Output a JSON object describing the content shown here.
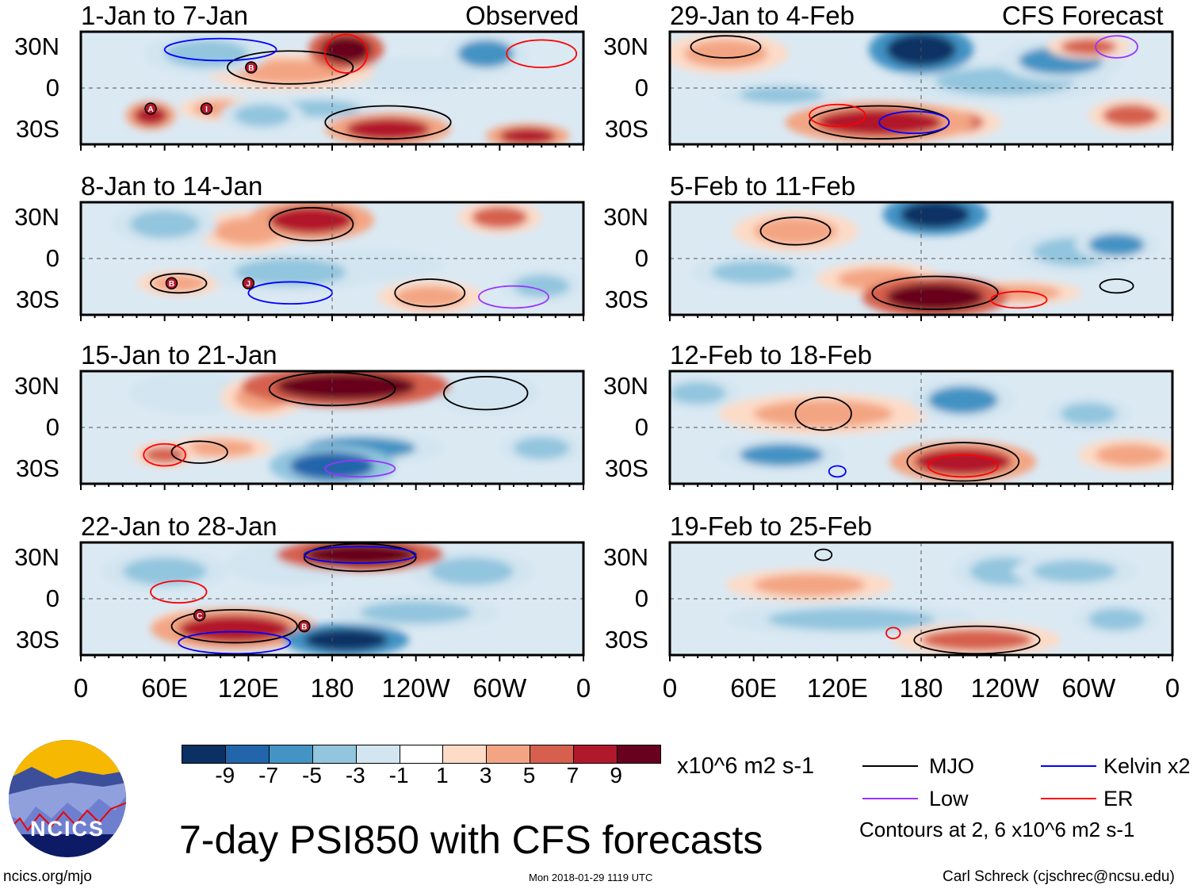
{
  "header": {
    "left_label": "Observed",
    "right_label": "CFS Forecast"
  },
  "panels": [
    {
      "title": "1-Jan to 7-Jan",
      "column": "observed"
    },
    {
      "title": "8-Jan to 14-Jan",
      "column": "observed"
    },
    {
      "title": "15-Jan to 21-Jan",
      "column": "observed"
    },
    {
      "title": "22-Jan to 28-Jan",
      "column": "observed"
    },
    {
      "title": "29-Jan to 4-Feb",
      "column": "forecast"
    },
    {
      "title": "5-Feb to 11-Feb",
      "column": "forecast"
    },
    {
      "title": "12-Feb to 18-Feb",
      "column": "forecast"
    },
    {
      "title": "19-Feb to 25-Feb",
      "column": "forecast"
    }
  ],
  "axes": {
    "y_ticks": [
      "30N",
      "0",
      "30S"
    ],
    "x_ticks": [
      "0",
      "60E",
      "120E",
      "180",
      "120W",
      "60W",
      "0"
    ]
  },
  "storm_markers": [
    {
      "panel": 0,
      "label": "A"
    },
    {
      "panel": 0,
      "label": "B"
    },
    {
      "panel": 0,
      "label": "I"
    },
    {
      "panel": 1,
      "label": "B"
    },
    {
      "panel": 1,
      "label": "J"
    },
    {
      "panel": 3,
      "label": "C"
    },
    {
      "panel": 3,
      "label": "B"
    }
  ],
  "colorbar": {
    "labels": [
      "-9",
      "-7",
      "-5",
      "-3",
      "-1",
      "1",
      "3",
      "5",
      "7",
      "9"
    ],
    "colors": [
      "#0a3064",
      "#2265ab",
      "#4393c4",
      "#92c5de",
      "#d2e5f0",
      "#ffffff",
      "#fddbc7",
      "#f3a583",
      "#d6604d",
      "#b2182b",
      "#68001f"
    ],
    "units": "x10^6 m2 s-1"
  },
  "legend": {
    "items": [
      {
        "label": "MJO",
        "color": "#000000"
      },
      {
        "label": "Kelvin x2",
        "color": "#0000ff"
      },
      {
        "label": "Low",
        "color": "#9933ff"
      },
      {
        "label": "ER",
        "color": "#ff0000"
      }
    ],
    "note": "Contours at 2, 6 x10^6 m2 s-1"
  },
  "footer": {
    "title": "7-day PSI850 with CFS forecasts",
    "url": "ncics.org/mjo",
    "timestamp": "Mon 2018-01-29 1119 UTC",
    "credit": "Carl Schreck (cjschrec@ncsu.edu)",
    "logo_text": "NCICS"
  }
}
